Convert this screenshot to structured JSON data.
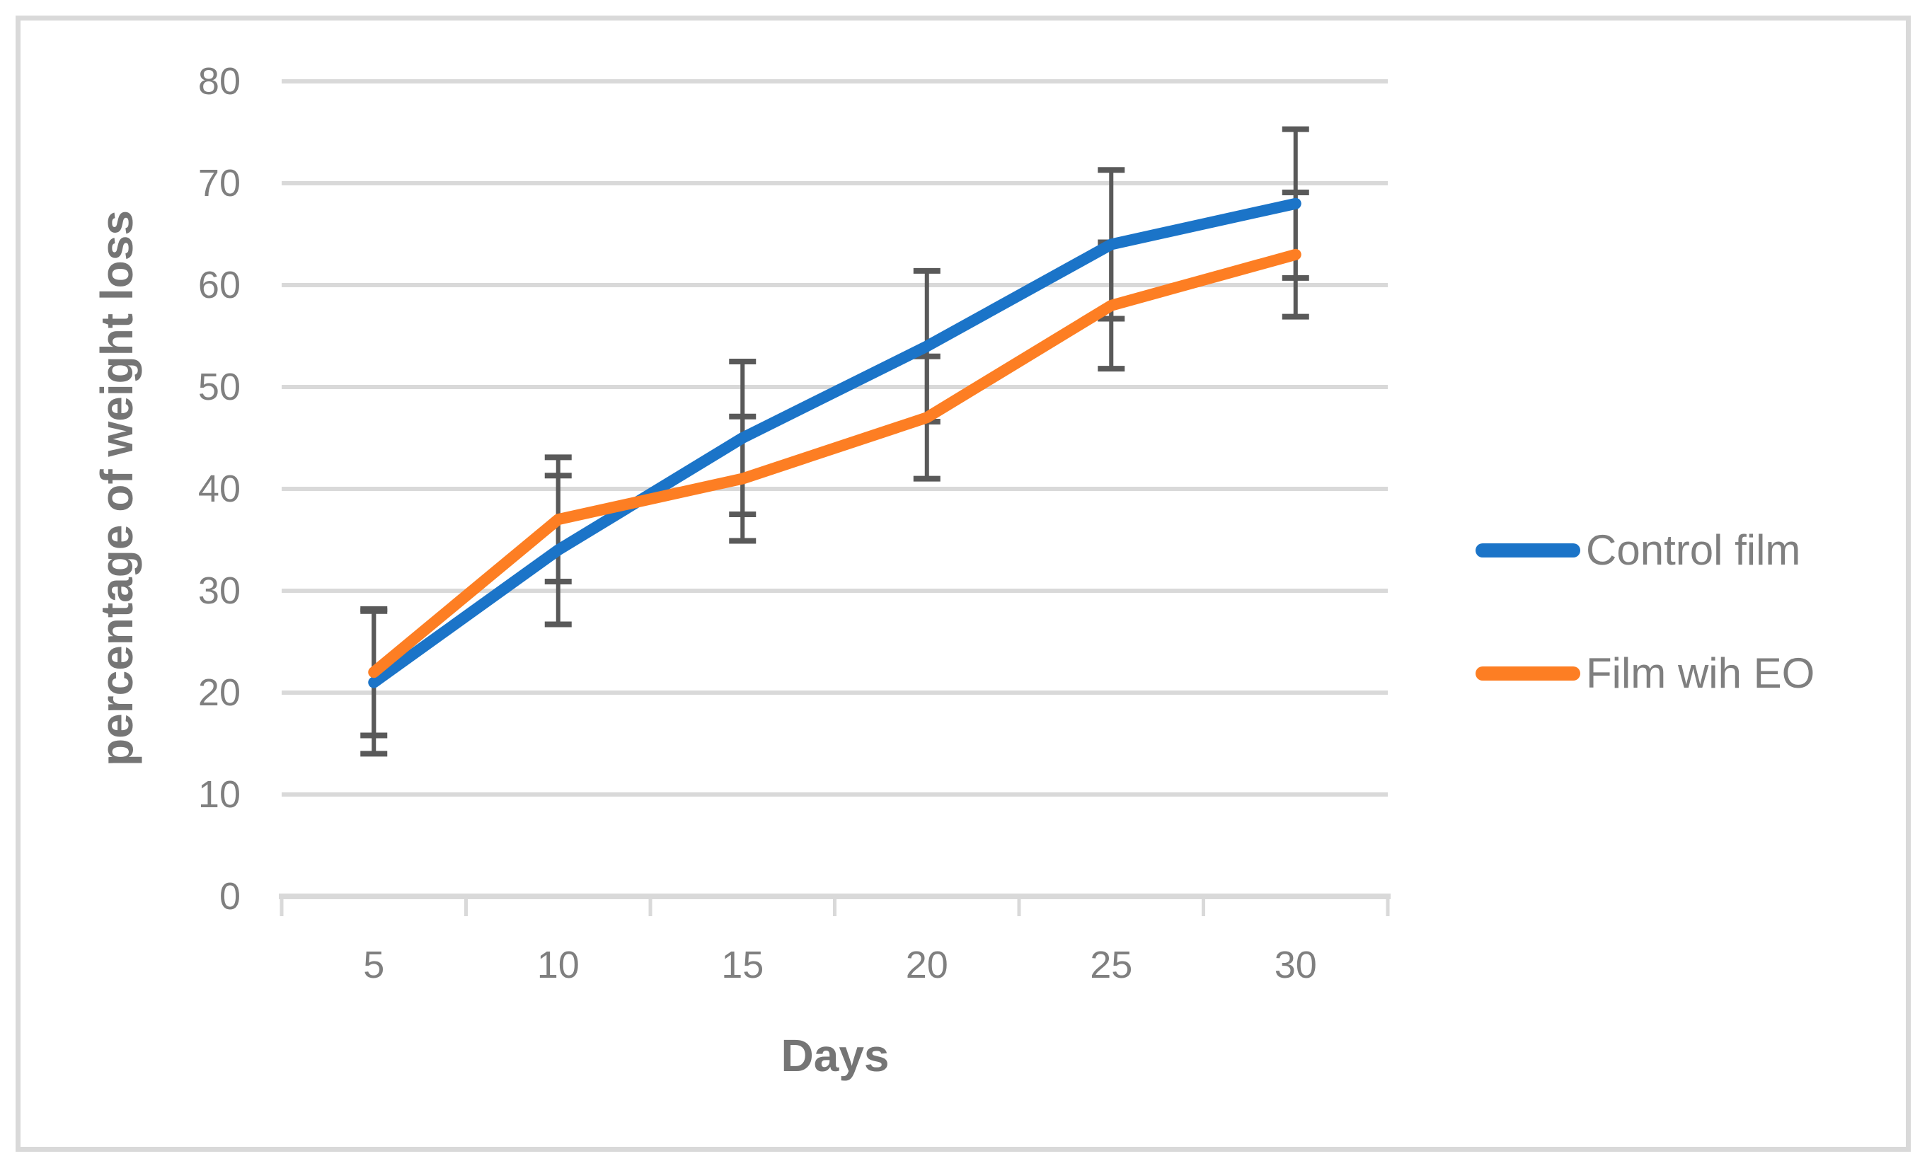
{
  "chart_data": {
    "type": "line",
    "title": "",
    "xlabel": "Days",
    "ylabel": "percentage of weight loss",
    "x": [
      5,
      10,
      15,
      20,
      25,
      30
    ],
    "x_tick_labels": [
      "5",
      "10",
      "15",
      "20",
      "25",
      "30"
    ],
    "ylim": [
      0,
      80
    ],
    "yticks": [
      0,
      10,
      20,
      30,
      40,
      50,
      60,
      70,
      80
    ],
    "grid": true,
    "legend_position": "right",
    "series": [
      {
        "name": "Control film",
        "color": "#1B74C8",
        "values": [
          21,
          34,
          45,
          54,
          64,
          68
        ],
        "errors": [
          7,
          7.3,
          7.5,
          7.4,
          7.3,
          7.3
        ]
      },
      {
        "name": "Film wih EO",
        "color": "#FD7E23",
        "values": [
          22,
          37,
          41,
          47,
          58,
          63
        ],
        "errors": [
          6.2,
          6.1,
          6.1,
          6,
          6.2,
          6.1
        ]
      }
    ]
  },
  "colors": {
    "background": "#FFFFFF",
    "border": "#D9D9D9",
    "gridline": "#D9D9D9",
    "axis_line": "#D9D9D9",
    "error_bar": "#595959",
    "tick_text": "#7F7F7F",
    "title_text": "#757575"
  }
}
